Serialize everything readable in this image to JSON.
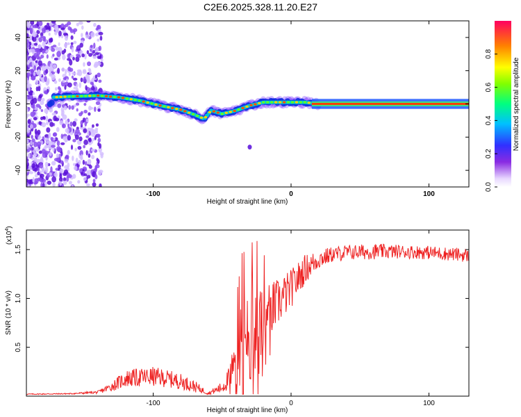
{
  "title": "C2E6.2025.328.11.20.E27",
  "chart_data": [
    {
      "type": "heatmap",
      "title": "C2E6.2025.328.11.20.E27",
      "xlabel": "Height of straight line (km)",
      "ylabel": "Frequency (Hz)",
      "xlim": [
        -192,
        129
      ],
      "ylim": [
        -50,
        50
      ],
      "xticks": [
        -100,
        0,
        100
      ],
      "xtick_labels": [
        "-100",
        "0",
        "100"
      ],
      "yticks": [
        -40,
        -20,
        0,
        20,
        40
      ],
      "ytick_labels": [
        "-40",
        "-20",
        "0",
        "20",
        "40"
      ],
      "colorbar": {
        "label": "Normalized spectral amplitude",
        "range": [
          0,
          1
        ],
        "ticks": [
          0.0,
          0.2,
          0.4,
          0.6,
          0.8
        ],
        "tick_labels": [
          "0.0",
          "0.2",
          "0.4",
          "0.6",
          "0.8"
        ]
      },
      "ridge": {
        "description_points_km_hz": [
          [
            -172,
            4
          ],
          [
            -160,
            4.5
          ],
          [
            -140,
            5
          ],
          [
            -125,
            4
          ],
          [
            -110,
            2
          ],
          [
            -95,
            -1
          ],
          [
            -80,
            -3.5
          ],
          [
            -70,
            -6.5
          ],
          [
            -63,
            -9
          ],
          [
            -58,
            -4
          ],
          [
            -50,
            -6
          ],
          [
            -40,
            -4
          ],
          [
            -30,
            -1
          ],
          [
            -25,
            0
          ],
          [
            -20,
            1
          ],
          [
            -10,
            1
          ],
          [
            0,
            1
          ],
          [
            10,
            1
          ],
          [
            20,
            0
          ],
          [
            129,
            0
          ]
        ],
        "outlier_point": [
          -30,
          -26
        ]
      }
    },
    {
      "type": "line",
      "xlabel": "Height of straight line (km)",
      "ylabel": "SNR (10 * v/v)",
      "yscale_label": "(x10",
      "yscale_exp": "4",
      "xlim": [
        -192,
        129
      ],
      "ylim": [
        0,
        17000
      ],
      "xticks": [
        -100,
        0,
        100
      ],
      "xtick_labels": [
        "-100",
        "0",
        "100"
      ],
      "yticks": [
        5000,
        10000,
        15000
      ],
      "ytick_labels": [
        "0.5",
        "1.0",
        "1.5"
      ],
      "color": "#ee2222",
      "envelope_x": [
        -192,
        -160,
        -140,
        -130,
        -120,
        -100,
        -90,
        -80,
        -70,
        -60,
        -50,
        -45,
        -40,
        -35,
        -30,
        -25,
        -20,
        -10,
        0,
        10,
        20,
        30,
        40,
        60,
        80,
        100,
        120,
        129
      ],
      "envelope_y": [
        200,
        250,
        400,
        1000,
        1800,
        2000,
        1800,
        1500,
        1000,
        300,
        900,
        1800,
        3500,
        6000,
        7500,
        6000,
        8000,
        9500,
        11000,
        13000,
        14000,
        14500,
        14700,
        14800,
        14800,
        14700,
        14500,
        14400
      ],
      "noise_amplitude": [
        50,
        60,
        150,
        500,
        900,
        1000,
        900,
        800,
        600,
        150,
        600,
        1200,
        3000,
        5000,
        6000,
        5000,
        3500,
        2500,
        2000,
        1500,
        1000,
        800,
        800,
        800,
        700,
        700,
        700,
        700
      ]
    }
  ]
}
